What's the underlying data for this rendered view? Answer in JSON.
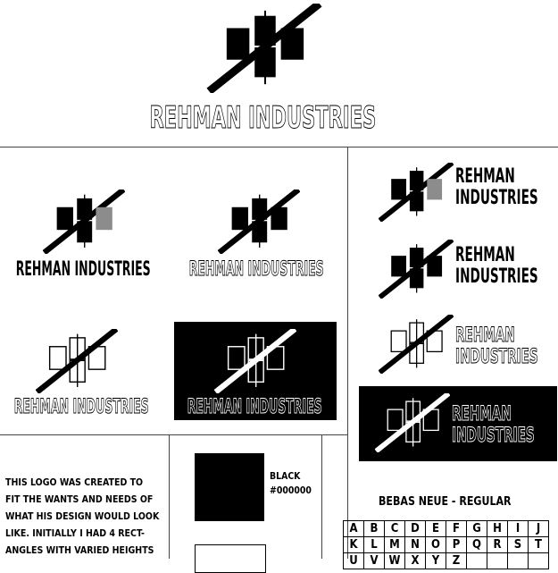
{
  "brand": {
    "name": "REHMAN INDUSTRIES",
    "line1": "REHMAN",
    "line2": "INDUSTRIES"
  },
  "description": {
    "lines": [
      "THIS LOGO WAS CREATED TO",
      "FIT THE WANTS AND NEEDS OF",
      "WHAT HIS DESIGN WOULD LOOK",
      "LIKE. INITIALLY I HAD 4 RECT-",
      "ANGLES WITH VARIED HEIGHTS"
    ]
  },
  "swatches": [
    {
      "name": "BLACK",
      "hex": "#000000",
      "color": "#000000"
    },
    {
      "color": "#ffffff"
    }
  ],
  "typeface": {
    "title": "BEBAS NEUE - REGULAR",
    "rows": [
      [
        "A",
        "B",
        "C",
        "D",
        "E",
        "F",
        "G",
        "H",
        "I",
        "J"
      ],
      [
        "K",
        "L",
        "M",
        "N",
        "O",
        "P",
        "Q",
        "R",
        "S",
        "T"
      ],
      [
        "U",
        "V",
        "W",
        "X",
        "Y",
        "Z",
        "",
        "",
        "",
        ""
      ]
    ]
  },
  "colors": {
    "black": "#000000",
    "gray": "#8c8c8c",
    "white": "#ffffff"
  }
}
